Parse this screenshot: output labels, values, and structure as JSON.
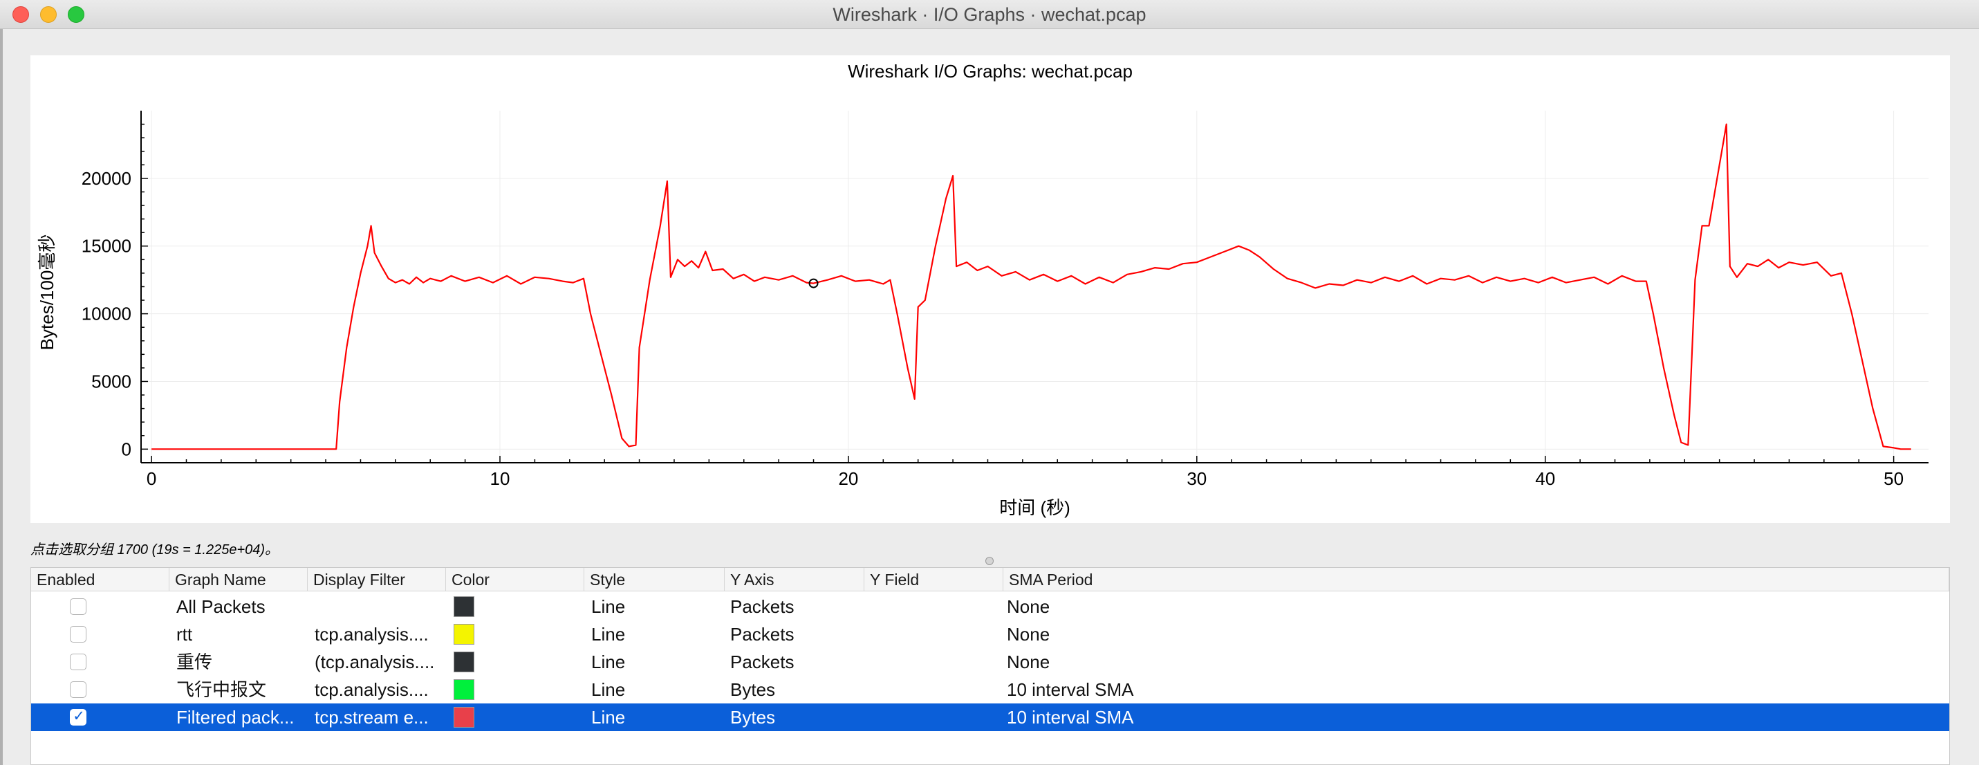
{
  "window": {
    "title": "Wireshark · I/O Graphs · wechat.pcap"
  },
  "status": {
    "text": "点击选取分组 1700 (19s = 1.225e+04)。"
  },
  "table": {
    "headers": [
      "Enabled",
      "Graph Name",
      "Display Filter",
      "Color",
      "Style",
      "Y Axis",
      "Y Field",
      "SMA Period"
    ],
    "rows": [
      {
        "enabled": false,
        "name": "All Packets",
        "filter": "",
        "color": "#2d3134",
        "style": "Line",
        "y_axis": "Packets",
        "y_field": "",
        "sma": "None"
      },
      {
        "enabled": false,
        "name": "rtt",
        "filter": "tcp.analysis....",
        "color": "#f4f400",
        "style": "Line",
        "y_axis": "Packets",
        "y_field": "",
        "sma": "None"
      },
      {
        "enabled": false,
        "name": "重传",
        "filter": "(tcp.analysis....",
        "color": "#2d3134",
        "style": "Line",
        "y_axis": "Packets",
        "y_field": "",
        "sma": "None"
      },
      {
        "enabled": false,
        "name": "飞行中报文",
        "filter": "tcp.analysis....",
        "color": "#00f03c",
        "style": "Line",
        "y_axis": "Bytes",
        "y_field": "",
        "sma": "10 interval SMA"
      },
      {
        "enabled": true,
        "name": "Filtered pack...",
        "filter": "tcp.stream e...",
        "color": "#e8404a",
        "style": "Line",
        "y_axis": "Bytes",
        "y_field": "",
        "sma": "10 interval SMA"
      }
    ]
  },
  "colors": {
    "line": "#ff0000",
    "selection": "#0b5fd9"
  },
  "chart_data": {
    "type": "line",
    "title": "Wireshark I/O Graphs: wechat.pcap",
    "xlabel": "时间 (秒)",
    "ylabel": "Bytes/100毫秒",
    "xlim": [
      -0.3,
      51
    ],
    "ylim": [
      -800,
      25000
    ],
    "xticks": [
      0,
      10,
      20,
      30,
      40,
      50
    ],
    "yticks": [
      0,
      5000,
      10000,
      15000,
      20000
    ],
    "grid": true,
    "marker": {
      "x": 19,
      "y": 12250
    },
    "series": [
      {
        "color": "#ff0000",
        "points": [
          [
            0,
            0
          ],
          [
            5.3,
            0
          ],
          [
            5.4,
            3500
          ],
          [
            5.6,
            7500
          ],
          [
            5.8,
            10500
          ],
          [
            6.0,
            13000
          ],
          [
            6.2,
            15000
          ],
          [
            6.3,
            16500
          ],
          [
            6.4,
            14500
          ],
          [
            6.6,
            13500
          ],
          [
            6.8,
            12600
          ],
          [
            7.0,
            12300
          ],
          [
            7.2,
            12500
          ],
          [
            7.4,
            12200
          ],
          [
            7.6,
            12700
          ],
          [
            7.8,
            12300
          ],
          [
            8.0,
            12600
          ],
          [
            8.3,
            12400
          ],
          [
            8.6,
            12800
          ],
          [
            9.0,
            12400
          ],
          [
            9.4,
            12700
          ],
          [
            9.8,
            12300
          ],
          [
            10.2,
            12800
          ],
          [
            10.6,
            12200
          ],
          [
            11.0,
            12700
          ],
          [
            11.4,
            12600
          ],
          [
            11.8,
            12400
          ],
          [
            12.1,
            12300
          ],
          [
            12.4,
            12600
          ],
          [
            12.6,
            10000
          ],
          [
            12.9,
            7000
          ],
          [
            13.2,
            4000
          ],
          [
            13.5,
            800
          ],
          [
            13.7,
            200
          ],
          [
            13.9,
            300
          ],
          [
            14.0,
            7500
          ],
          [
            14.3,
            12500
          ],
          [
            14.6,
            16500
          ],
          [
            14.8,
            19800
          ],
          [
            14.9,
            12700
          ],
          [
            15.1,
            14000
          ],
          [
            15.3,
            13500
          ],
          [
            15.5,
            13900
          ],
          [
            15.7,
            13400
          ],
          [
            15.9,
            14600
          ],
          [
            16.1,
            13200
          ],
          [
            16.4,
            13300
          ],
          [
            16.7,
            12600
          ],
          [
            17.0,
            12900
          ],
          [
            17.3,
            12400
          ],
          [
            17.6,
            12700
          ],
          [
            18.0,
            12500
          ],
          [
            18.4,
            12800
          ],
          [
            18.8,
            12300
          ],
          [
            19.0,
            12250
          ],
          [
            19.4,
            12500
          ],
          [
            19.8,
            12800
          ],
          [
            20.2,
            12400
          ],
          [
            20.6,
            12500
          ],
          [
            21.0,
            12200
          ],
          [
            21.2,
            12500
          ],
          [
            21.4,
            10000
          ],
          [
            21.7,
            6000
          ],
          [
            21.9,
            3700
          ],
          [
            22.0,
            10500
          ],
          [
            22.2,
            11000
          ],
          [
            22.5,
            15000
          ],
          [
            22.8,
            18500
          ],
          [
            23.0,
            20200
          ],
          [
            23.1,
            13500
          ],
          [
            23.4,
            13800
          ],
          [
            23.7,
            13200
          ],
          [
            24.0,
            13500
          ],
          [
            24.4,
            12800
          ],
          [
            24.8,
            13100
          ],
          [
            25.2,
            12500
          ],
          [
            25.6,
            12900
          ],
          [
            26.0,
            12400
          ],
          [
            26.4,
            12800
          ],
          [
            26.8,
            12200
          ],
          [
            27.2,
            12700
          ],
          [
            27.6,
            12300
          ],
          [
            28.0,
            12900
          ],
          [
            28.4,
            13100
          ],
          [
            28.8,
            13400
          ],
          [
            29.2,
            13300
          ],
          [
            29.6,
            13700
          ],
          [
            30.0,
            13800
          ],
          [
            30.4,
            14200
          ],
          [
            30.8,
            14600
          ],
          [
            31.2,
            15000
          ],
          [
            31.5,
            14700
          ],
          [
            31.8,
            14200
          ],
          [
            32.2,
            13300
          ],
          [
            32.6,
            12600
          ],
          [
            33.0,
            12300
          ],
          [
            33.4,
            11900
          ],
          [
            33.8,
            12200
          ],
          [
            34.2,
            12100
          ],
          [
            34.6,
            12500
          ],
          [
            35.0,
            12300
          ],
          [
            35.4,
            12700
          ],
          [
            35.8,
            12400
          ],
          [
            36.2,
            12800
          ],
          [
            36.6,
            12200
          ],
          [
            37.0,
            12600
          ],
          [
            37.4,
            12500
          ],
          [
            37.8,
            12800
          ],
          [
            38.2,
            12300
          ],
          [
            38.6,
            12700
          ],
          [
            39.0,
            12400
          ],
          [
            39.4,
            12600
          ],
          [
            39.8,
            12300
          ],
          [
            40.2,
            12700
          ],
          [
            40.6,
            12300
          ],
          [
            41.0,
            12500
          ],
          [
            41.4,
            12700
          ],
          [
            41.8,
            12200
          ],
          [
            42.2,
            12800
          ],
          [
            42.6,
            12400
          ],
          [
            42.9,
            12400
          ],
          [
            43.1,
            10000
          ],
          [
            43.4,
            6000
          ],
          [
            43.7,
            2500
          ],
          [
            43.9,
            500
          ],
          [
            44.1,
            300
          ],
          [
            44.3,
            12500
          ],
          [
            44.5,
            16500
          ],
          [
            44.7,
            16500
          ],
          [
            44.9,
            19500
          ],
          [
            45.1,
            22500
          ],
          [
            45.2,
            24000
          ],
          [
            45.3,
            13500
          ],
          [
            45.5,
            12700
          ],
          [
            45.8,
            13700
          ],
          [
            46.1,
            13500
          ],
          [
            46.4,
            14000
          ],
          [
            46.7,
            13400
          ],
          [
            47.0,
            13800
          ],
          [
            47.4,
            13600
          ],
          [
            47.8,
            13800
          ],
          [
            48.2,
            12800
          ],
          [
            48.5,
            13000
          ],
          [
            48.8,
            10000
          ],
          [
            49.1,
            6500
          ],
          [
            49.4,
            3000
          ],
          [
            49.7,
            200
          ],
          [
            50.0,
            100
          ],
          [
            50.2,
            0
          ],
          [
            50.5,
            0
          ]
        ]
      }
    ]
  }
}
